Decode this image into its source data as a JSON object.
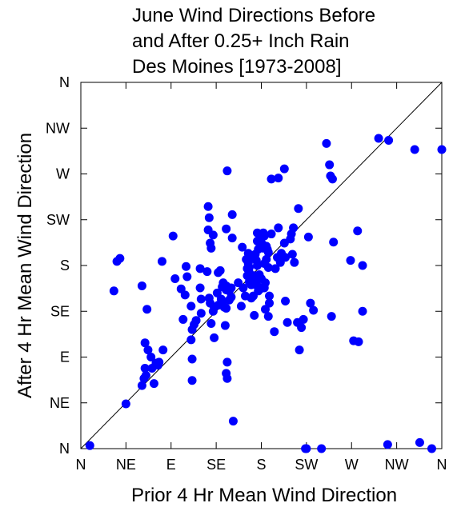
{
  "chart_data": {
    "type": "scatter",
    "title": [
      "June Wind Directions Before",
      "and After 0.25+ Inch Rain",
      "Des Moines [1973-2008]"
    ],
    "xlabel": "Prior 4 Hr Mean Wind Direction",
    "ylabel": "After 4 Hr Mean Wind Direction",
    "xlim": [
      0,
      360
    ],
    "ylim": [
      0,
      360
    ],
    "x_ticks": [
      {
        "value": 0,
        "label": "N"
      },
      {
        "value": 45,
        "label": "NE"
      },
      {
        "value": 90,
        "label": "E"
      },
      {
        "value": 135,
        "label": "SE"
      },
      {
        "value": 180,
        "label": "S"
      },
      {
        "value": 225,
        "label": "SW"
      },
      {
        "value": 270,
        "label": "W"
      },
      {
        "value": 315,
        "label": "NW"
      },
      {
        "value": 360,
        "label": "N"
      }
    ],
    "y_ticks": [
      {
        "value": 0,
        "label": "N"
      },
      {
        "value": 45,
        "label": "NE"
      },
      {
        "value": 90,
        "label": "E"
      },
      {
        "value": 135,
        "label": "SE"
      },
      {
        "value": 180,
        "label": "S"
      },
      {
        "value": 225,
        "label": "SW"
      },
      {
        "value": 270,
        "label": "W"
      },
      {
        "value": 315,
        "label": "NW"
      },
      {
        "value": 360,
        "label": "N"
      }
    ],
    "reference_line": {
      "from": [
        0,
        0
      ],
      "to": [
        360,
        360
      ],
      "color": "#000000"
    },
    "grid": false,
    "marker_color": "#0000ff",
    "points": [
      [
        9,
        3
      ],
      [
        36,
        184
      ],
      [
        39,
        187
      ],
      [
        33,
        155
      ],
      [
        45,
        44
      ],
      [
        61,
        160
      ],
      [
        66,
        137
      ],
      [
        64,
        104
      ],
      [
        67,
        97
      ],
      [
        70,
        90
      ],
      [
        71,
        79
      ],
      [
        64,
        79
      ],
      [
        65,
        72
      ],
      [
        63,
        69
      ],
      [
        61,
        62
      ],
      [
        73,
        64
      ],
      [
        77,
        82
      ],
      [
        75,
        84
      ],
      [
        78,
        85
      ],
      [
        82,
        97
      ],
      [
        81,
        184
      ],
      [
        94,
        167
      ],
      [
        100,
        157
      ],
      [
        92,
        209
      ],
      [
        104,
        151
      ],
      [
        106,
        169
      ],
      [
        105,
        179
      ],
      [
        110,
        140
      ],
      [
        110,
        107
      ],
      [
        111,
        67
      ],
      [
        111,
        88
      ],
      [
        120,
        147
      ],
      [
        119,
        158
      ],
      [
        120,
        133
      ],
      [
        119,
        177
      ],
      [
        113,
        122
      ],
      [
        115,
        126
      ],
      [
        111,
        117
      ],
      [
        102,
        127
      ],
      [
        128,
        148
      ],
      [
        129,
        143
      ],
      [
        130,
        123
      ],
      [
        132,
        135
      ],
      [
        133,
        139
      ],
      [
        127,
        238
      ],
      [
        126,
        174
      ],
      [
        129,
        202
      ],
      [
        130,
        197
      ],
      [
        127,
        215
      ],
      [
        128,
        227
      ],
      [
        132,
        210
      ],
      [
        133,
        109
      ],
      [
        136,
        153
      ],
      [
        137,
        173
      ],
      [
        137,
        141
      ],
      [
        140,
        147
      ],
      [
        141,
        159
      ],
      [
        141,
        144
      ],
      [
        143,
        139
      ],
      [
        145,
        138
      ],
      [
        144,
        121
      ],
      [
        145,
        74
      ],
      [
        146,
        69
      ],
      [
        146,
        85
      ],
      [
        139,
        175
      ],
      [
        142,
        163
      ],
      [
        145,
        160
      ],
      [
        145,
        156
      ],
      [
        148,
        155
      ],
      [
        148,
        146
      ],
      [
        150,
        149
      ],
      [
        150,
        158
      ],
      [
        146,
        273
      ],
      [
        145,
        216
      ],
      [
        151,
        230
      ],
      [
        151,
        207
      ],
      [
        152,
        27
      ],
      [
        160,
        140
      ],
      [
        157,
        163
      ],
      [
        162,
        158
      ],
      [
        164,
        150
      ],
      [
        161,
        198
      ],
      [
        165,
        186
      ],
      [
        167,
        182
      ],
      [
        166,
        177
      ],
      [
        166,
        170
      ],
      [
        167,
        192
      ],
      [
        168,
        178
      ],
      [
        168,
        173
      ],
      [
        168,
        164
      ],
      [
        170,
        161
      ],
      [
        170,
        148
      ],
      [
        172,
        150
      ],
      [
        173,
        170
      ],
      [
        173,
        131
      ],
      [
        176,
        204
      ],
      [
        172,
        188
      ],
      [
        176,
        180
      ],
      [
        178,
        171
      ],
      [
        180,
        167
      ],
      [
        174,
        191
      ],
      [
        175,
        165
      ],
      [
        176,
        160
      ],
      [
        177,
        155
      ],
      [
        179,
        157
      ],
      [
        175,
        185
      ],
      [
        177,
        196
      ],
      [
        176,
        212
      ],
      [
        180,
        207
      ],
      [
        181,
        201
      ],
      [
        182,
        197
      ],
      [
        182,
        212
      ],
      [
        183,
        209
      ],
      [
        183,
        182
      ],
      [
        185,
        199
      ],
      [
        186,
        196
      ],
      [
        187,
        193
      ],
      [
        187,
        178
      ],
      [
        188,
        143
      ],
      [
        188,
        150
      ],
      [
        184,
        137
      ],
      [
        183,
        158
      ],
      [
        184,
        163
      ],
      [
        187,
        130
      ],
      [
        185,
        186
      ],
      [
        190,
        265
      ],
      [
        190,
        211
      ],
      [
        193,
        115
      ],
      [
        194,
        177
      ],
      [
        196,
        188
      ],
      [
        197,
        217
      ],
      [
        197,
        266
      ],
      [
        199,
        183
      ],
      [
        200,
        192
      ],
      [
        203,
        275
      ],
      [
        204,
        188
      ],
      [
        203,
        202
      ],
      [
        204,
        145
      ],
      [
        206,
        124
      ],
      [
        209,
        206
      ],
      [
        210,
        211
      ],
      [
        211,
        191
      ],
      [
        212,
        217
      ],
      [
        213,
        183
      ],
      [
        216,
        124
      ],
      [
        217,
        236
      ],
      [
        220,
        119
      ],
      [
        218,
        97
      ],
      [
        222,
        127
      ],
      [
        224,
        0
      ],
      [
        227,
        208
      ],
      [
        229,
        143
      ],
      [
        232,
        136
      ],
      [
        245,
        300
      ],
      [
        248,
        279
      ],
      [
        249,
        268
      ],
      [
        251,
        265
      ],
      [
        250,
        130
      ],
      [
        252,
        203
      ],
      [
        269,
        185
      ],
      [
        281,
        180
      ],
      [
        281,
        135
      ],
      [
        277,
        105
      ],
      [
        272,
        106
      ],
      [
        276,
        214
      ],
      [
        297,
        305
      ],
      [
        307,
        303
      ],
      [
        333,
        294
      ],
      [
        360,
        294
      ],
      [
        225,
        0
      ],
      [
        240,
        0
      ],
      [
        306,
        4
      ],
      [
        338,
        6
      ],
      [
        350,
        0
      ]
    ]
  }
}
